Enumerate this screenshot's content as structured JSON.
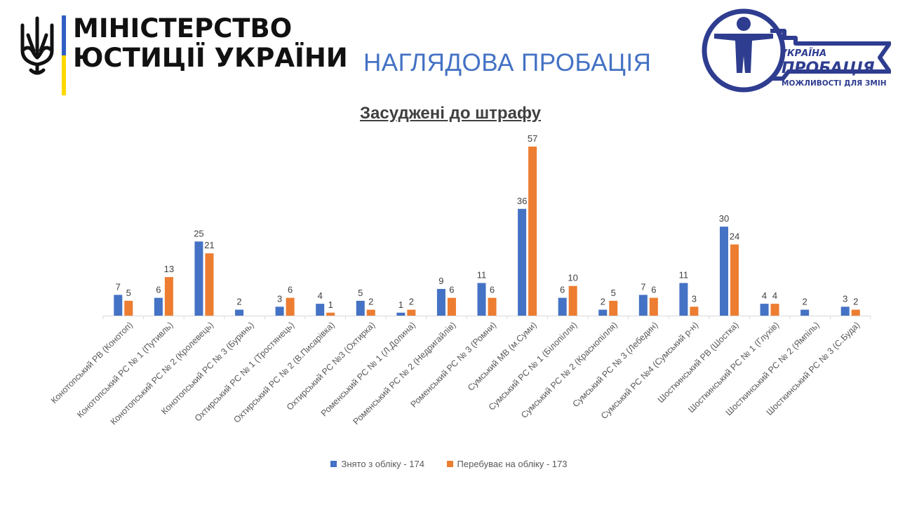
{
  "header": {
    "ministry_line1": "МІНІСТЕРСТВО",
    "ministry_line2": "ЮСТИЦІЇ УКРАЇНИ",
    "page_title": "НАГЛЯДОВА ПРОБАЦІЯ",
    "logo": {
      "word_ukraine": "УКРАЇНА",
      "word_probation": "ПРОБАЦІЯ",
      "tagline": "МОЖЛИВОСТІ ДЛЯ ЗМІН"
    }
  },
  "colors": {
    "series1": "#4472c4",
    "series2": "#ed7d31",
    "flag_blue": "#2f5fc4",
    "flag_yellow": "#ffd800",
    "logo_blue": "#2e3d8f"
  },
  "chart_data": {
    "type": "bar",
    "title": "Засуджені до штрафу",
    "categories": [
      "Конотопський РВ (Конотоп)",
      "Конотопський РС № 1 (Путивль)",
      "Конотопський РС № 2 (Кролевець)",
      "Конотопський РС № 3 (Буринь)",
      "Охтирський РС № 1 (Тростянець)",
      "Охтирський РС № 2 (В.Писарівка)",
      "Охтирський РС №3 (Охтирка)",
      "Роменський РС № 1 (Л.Долина)",
      "Роменський РС № 2 (Недригайлів)",
      "Роменський РС № 3 (Ромни)",
      "Сумський МВ (м.Суми)",
      "Сумський РС № 1 (Білопілля)",
      "Сумський РС № 2 (Краснопілля)",
      "Сумський РС № 3 (Лебедин)",
      "Сумський РС №4 (Сумський р-н)",
      "Шосткинський РВ (Шостка)",
      "Шосткинський РС № 1 (Глухів)",
      "Шосткинський РС № 2 (Ямпіль)",
      "Шосткинський РС № 3 (С.Буда)"
    ],
    "series": [
      {
        "name": "Знято з обліку - 174",
        "values": [
          7,
          6,
          25,
          2,
          3,
          4,
          5,
          1,
          9,
          11,
          36,
          6,
          2,
          7,
          11,
          30,
          4,
          2,
          3
        ]
      },
      {
        "name": "Перебуває на обліку - 173",
        "values": [
          5,
          13,
          21,
          null,
          6,
          1,
          2,
          2,
          6,
          6,
          57,
          10,
          5,
          6,
          3,
          24,
          4,
          null,
          2
        ]
      }
    ],
    "ylim": [
      0,
      57
    ],
    "legend_position": "bottom",
    "grid": false
  }
}
